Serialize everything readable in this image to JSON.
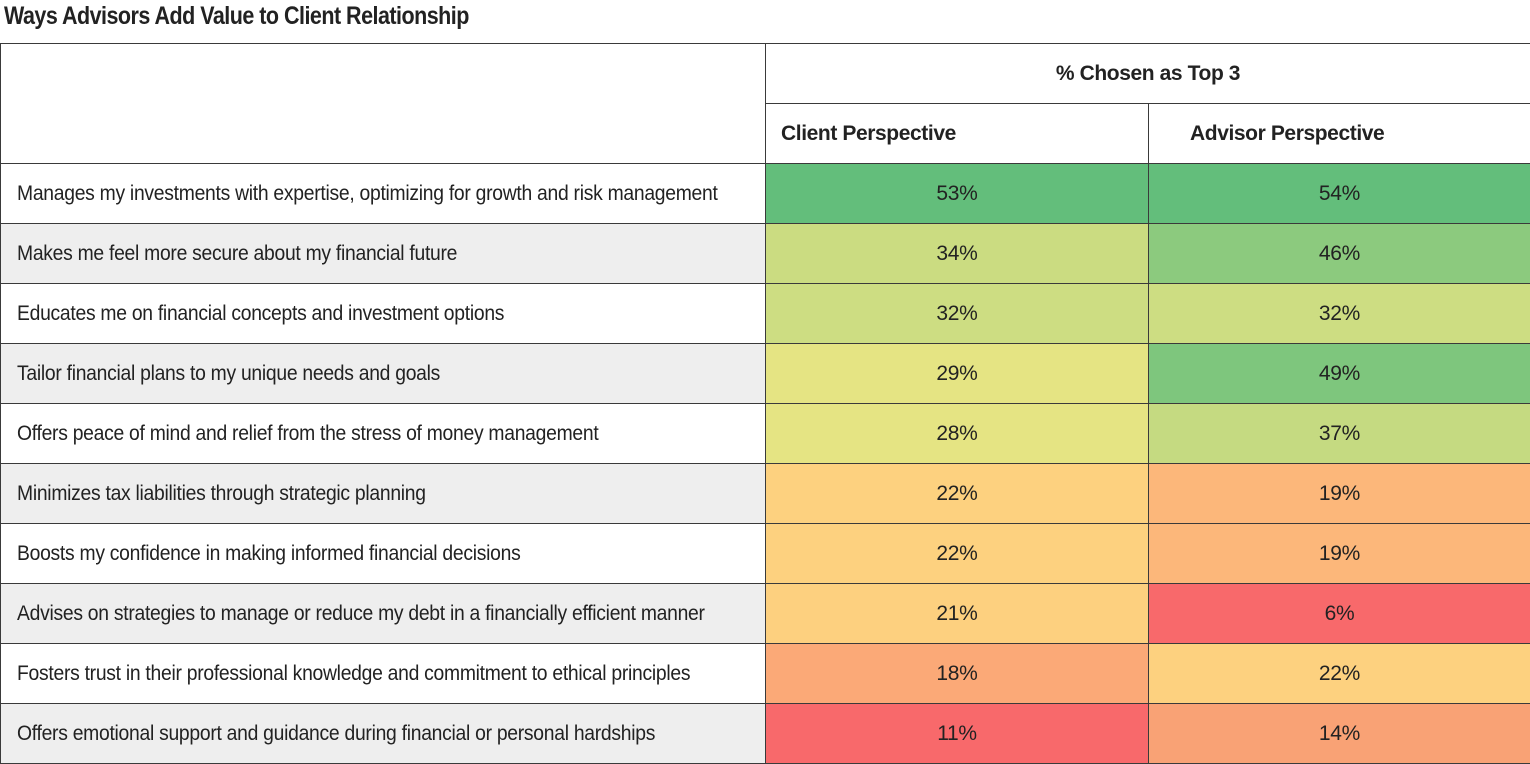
{
  "title": "Ways Advisors Add Value to Client Relationship",
  "chart_data": {
    "type": "table",
    "title": "Ways Advisors Add Value to Client Relationship",
    "group_header": "% Chosen as Top 3",
    "columns": [
      "Client Perspective",
      "Advisor Perspective"
    ],
    "rows": [
      {
        "label": "Manages my investments with expertise, optimizing for growth and risk management",
        "values": [
          53,
          54
        ],
        "display": [
          "53%",
          "54%"
        ],
        "colors": [
          "#63be7b",
          "#63be7b"
        ]
      },
      {
        "label": "Makes me feel more secure about my financial future",
        "values": [
          34,
          46
        ],
        "display": [
          "34%",
          "46%"
        ],
        "colors": [
          "#cbdc81",
          "#8cca7e"
        ]
      },
      {
        "label": "Educates me on financial concepts and investment options",
        "values": [
          32,
          32
        ],
        "display": [
          "32%",
          "32%"
        ],
        "colors": [
          "#cddd82",
          "#cddd82"
        ]
      },
      {
        "label": "Tailor financial plans to my unique needs and goals",
        "values": [
          29,
          49
        ],
        "display": [
          "29%",
          "49%"
        ],
        "colors": [
          "#e5e483",
          "#7ec67d"
        ]
      },
      {
        "label": "Offers peace of mind and relief from the stress of money management",
        "values": [
          28,
          37
        ],
        "display": [
          "28%",
          "37%"
        ],
        "colors": [
          "#e5e483",
          "#c5da81"
        ]
      },
      {
        "label": "Minimizes tax liabilities through strategic planning",
        "values": [
          22,
          19
        ],
        "display": [
          "22%",
          "19%"
        ],
        "colors": [
          "#fdd17f",
          "#fcb77a"
        ]
      },
      {
        "label": "Boosts my confidence in making informed financial decisions",
        "values": [
          22,
          19
        ],
        "display": [
          "22%",
          "19%"
        ],
        "colors": [
          "#fdd17f",
          "#fcb77a"
        ]
      },
      {
        "label": "Advises on strategies to manage or reduce my debt in a financially efficient manner",
        "values": [
          21,
          6
        ],
        "display": [
          "21%",
          "6%"
        ],
        "colors": [
          "#fdd07f",
          "#f8696b"
        ]
      },
      {
        "label": "Fosters trust in their professional knowledge and commitment to ethical principles",
        "values": [
          18,
          22
        ],
        "display": [
          "18%",
          "22%"
        ],
        "colors": [
          "#fba977",
          "#fdd17f"
        ]
      },
      {
        "label": "Offers emotional support and guidance during financial or personal hardships",
        "values": [
          11,
          14
        ],
        "display": [
          "11%",
          "14%"
        ],
        "colors": [
          "#f8696b",
          "#f9a275"
        ]
      }
    ]
  }
}
